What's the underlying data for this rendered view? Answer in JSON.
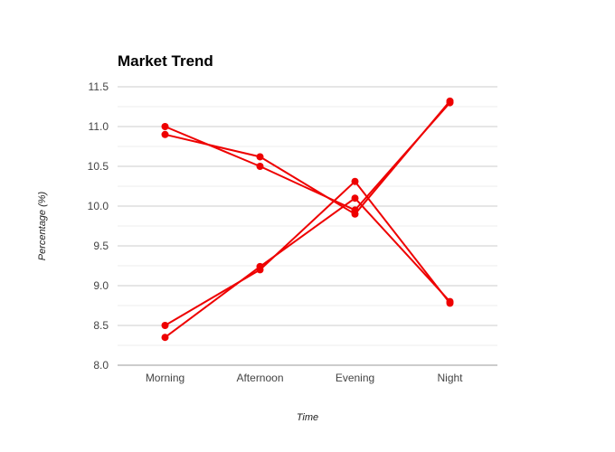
{
  "chart_data": {
    "type": "line",
    "title": "Market Trend",
    "xlabel": "Time",
    "ylabel": "Percentage (%)",
    "categories": [
      "Morning",
      "Afternoon",
      "Evening",
      "Night"
    ],
    "ylim": [
      8.0,
      11.5
    ],
    "yticks": [
      "8.0",
      "8.5",
      "9.0",
      "9.5",
      "10.0",
      "10.5",
      "11.0",
      "11.5"
    ],
    "grid": true,
    "legend": "none",
    "series_color": "#ee0000",
    "series": [
      {
        "values": [
          11.0,
          10.5,
          9.95,
          11.3
        ]
      },
      {
        "values": [
          10.9,
          10.62,
          9.9,
          11.32
        ]
      },
      {
        "values": [
          8.5,
          9.2,
          10.31,
          8.78
        ]
      },
      {
        "values": [
          8.35,
          9.24,
          10.1,
          8.8
        ]
      }
    ]
  }
}
